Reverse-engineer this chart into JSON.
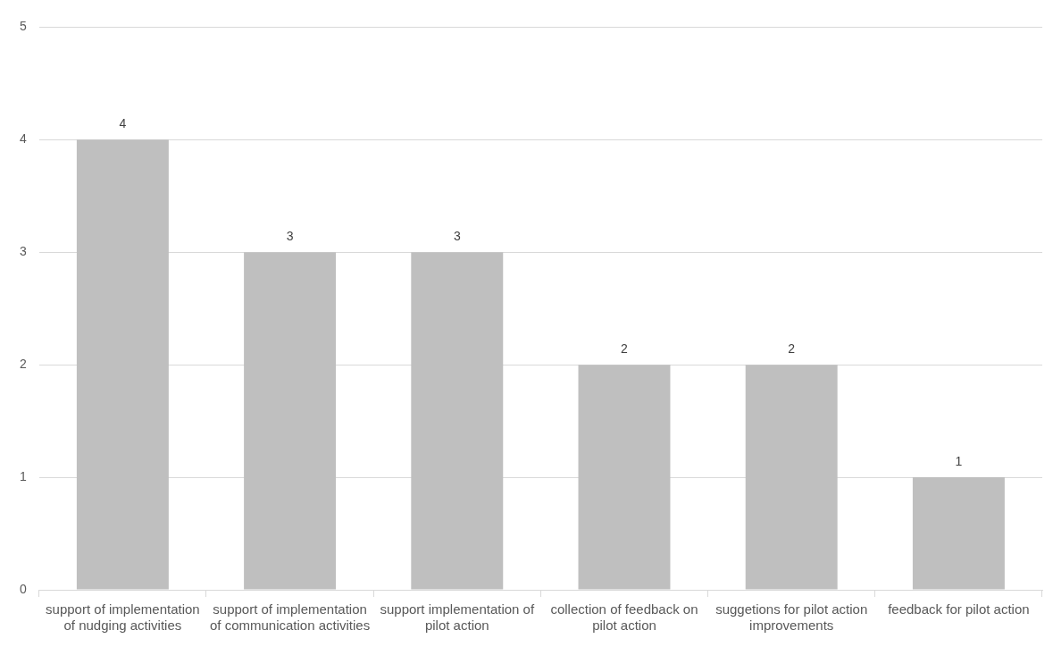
{
  "chart_data": {
    "type": "bar",
    "categories": [
      "support of implementation of nudging activities",
      "support of implementation of communication activities",
      "support implementation of pilot action",
      "collection of feedback on pilot action",
      "suggetions for pilot action improvements",
      "feedback for pilot action"
    ],
    "values": [
      4,
      3,
      3,
      2,
      2,
      1
    ],
    "color": "#bfbfbf",
    "ylim": [
      0,
      5
    ],
    "yticks": [
      0,
      1,
      2,
      3,
      4,
      5
    ],
    "grid": "y",
    "legend": false,
    "data_labels": true
  }
}
